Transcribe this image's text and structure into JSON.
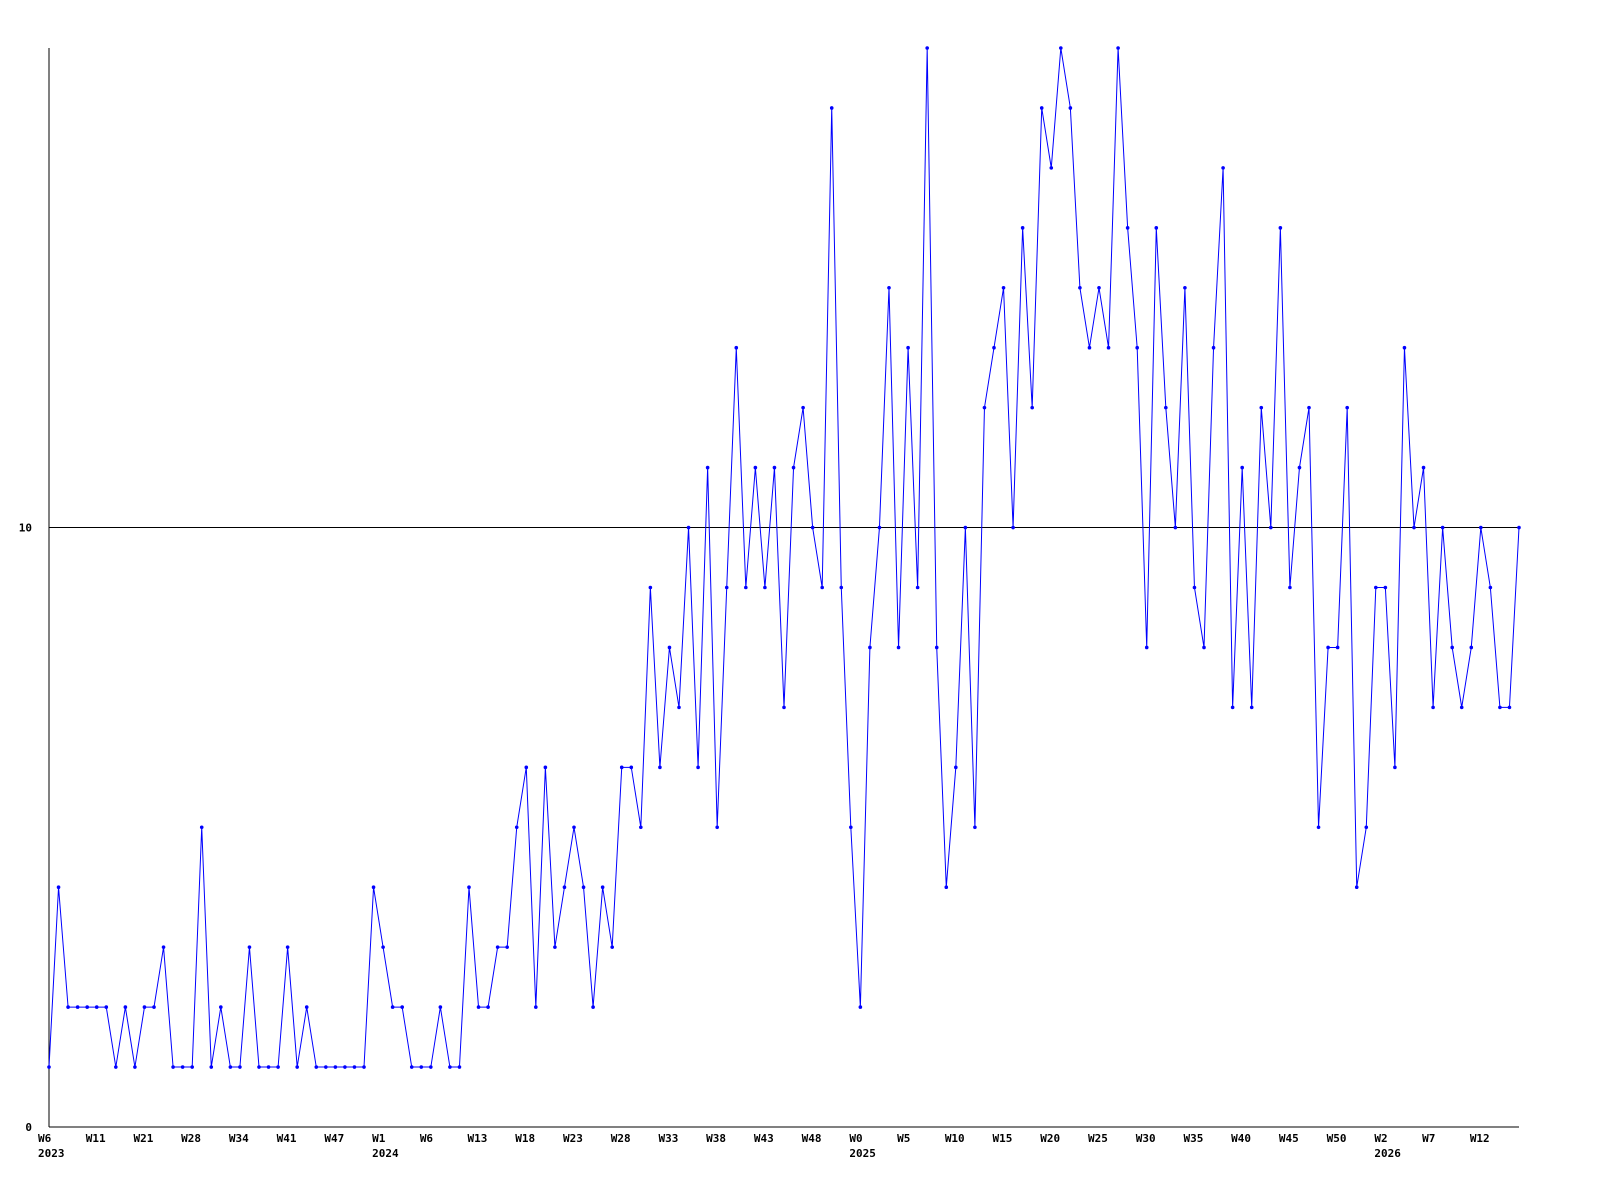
{
  "chart_data": {
    "type": "line",
    "categories": [
      "W6",
      null,
      null,
      null,
      null,
      "W11",
      null,
      null,
      null,
      null,
      "W21",
      null,
      null,
      null,
      null,
      "W28",
      null,
      null,
      null,
      null,
      "W34",
      null,
      null,
      null,
      null,
      "W41",
      null,
      null,
      null,
      null,
      "W47",
      null,
      null,
      null,
      null,
      "W1",
      null,
      null,
      null,
      null,
      "W6",
      null,
      null,
      null,
      null,
      "W13",
      null,
      null,
      null,
      null,
      "W18",
      null,
      null,
      null,
      null,
      "W23",
      null,
      null,
      null,
      null,
      "W28",
      null,
      null,
      null,
      null,
      "W33",
      null,
      null,
      null,
      null,
      "W38",
      null,
      null,
      null,
      null,
      "W43",
      null,
      null,
      null,
      null,
      "W48",
      null,
      null,
      null,
      null,
      "W0",
      null,
      null,
      null,
      null,
      "W5",
      null,
      null,
      null,
      null,
      "W10",
      null,
      null,
      null,
      null,
      "W15",
      null,
      null,
      null,
      null,
      "W20",
      null,
      null,
      null,
      null,
      "W25",
      null,
      null,
      null,
      null,
      "W30",
      null,
      null,
      null,
      null,
      "W35",
      null,
      null,
      null,
      null,
      "W40",
      null,
      null,
      null,
      null,
      "W45",
      null,
      null,
      null,
      null,
      "W50",
      null,
      null,
      null,
      null,
      "W2",
      null,
      null,
      null,
      null,
      "W7",
      null,
      null,
      null,
      null,
      "W12",
      null,
      null,
      null,
      null
    ],
    "year_labels": [
      "2023",
      null,
      null,
      null,
      null,
      null,
      null,
      null,
      null,
      null,
      null,
      null,
      null,
      null,
      null,
      null,
      null,
      null,
      null,
      null,
      null,
      null,
      null,
      null,
      null,
      null,
      null,
      null,
      null,
      null,
      null,
      null,
      null,
      null,
      null,
      "2024",
      null,
      null,
      null,
      null,
      null,
      null,
      null,
      null,
      null,
      null,
      null,
      null,
      null,
      null,
      null,
      null,
      null,
      null,
      null,
      null,
      null,
      null,
      null,
      null,
      null,
      null,
      null,
      null,
      null,
      null,
      null,
      null,
      null,
      null,
      null,
      null,
      null,
      null,
      null,
      null,
      null,
      null,
      null,
      null,
      null,
      null,
      null,
      null,
      null,
      "2025",
      null,
      null,
      null,
      null,
      null,
      null,
      null,
      null,
      null,
      null,
      null,
      null,
      null,
      null,
      null,
      null,
      null,
      null,
      null,
      null,
      null,
      null,
      null,
      null,
      null,
      null,
      null,
      null,
      null,
      null,
      null,
      null,
      null,
      null,
      null,
      null,
      null,
      null,
      null,
      null,
      null,
      null,
      null,
      null,
      null,
      null,
      null,
      null,
      null,
      null,
      null,
      null,
      null,
      null,
      "2026",
      null,
      null,
      null,
      null,
      null,
      null,
      null,
      null,
      null,
      null,
      null,
      null,
      null,
      null
    ],
    "series": [
      {
        "color": "#0000ff",
        "values": [
          1,
          4,
          2,
          2,
          2,
          2,
          2,
          1,
          2,
          1,
          2,
          2,
          3,
          1,
          1,
          1,
          5,
          1,
          2,
          1,
          1,
          3,
          1,
          1,
          1,
          3,
          1,
          2,
          1,
          1,
          1,
          1,
          1,
          1,
          4,
          3,
          2,
          2,
          1,
          1,
          1,
          2,
          1,
          1,
          4,
          2,
          2,
          3,
          3,
          5,
          6,
          2,
          6,
          3,
          4,
          5,
          4,
          2,
          4,
          3,
          6,
          6,
          5,
          9,
          6,
          8,
          7,
          10,
          6,
          11,
          5,
          9,
          13,
          9,
          11,
          9,
          11,
          7,
          11,
          12,
          10,
          9,
          17,
          9,
          5,
          2,
          8,
          10,
          14,
          8,
          13,
          9,
          18,
          8,
          4,
          6,
          10,
          5,
          12,
          13,
          14,
          10,
          15,
          12,
          17,
          16,
          18,
          17,
          14,
          13,
          14,
          13,
          18,
          15,
          13,
          8,
          15,
          12,
          10,
          14,
          9,
          8,
          13,
          16,
          7,
          11,
          7,
          12,
          10,
          15,
          9,
          11,
          12,
          5,
          8,
          8,
          12,
          4,
          5,
          9,
          9,
          6,
          13,
          10,
          11,
          7,
          10,
          8,
          7,
          8,
          10,
          9,
          7,
          7,
          10
        ]
      }
    ],
    "ylim": [
      0,
      18
    ],
    "yticks": [
      0,
      10
    ],
    "grid": true
  }
}
